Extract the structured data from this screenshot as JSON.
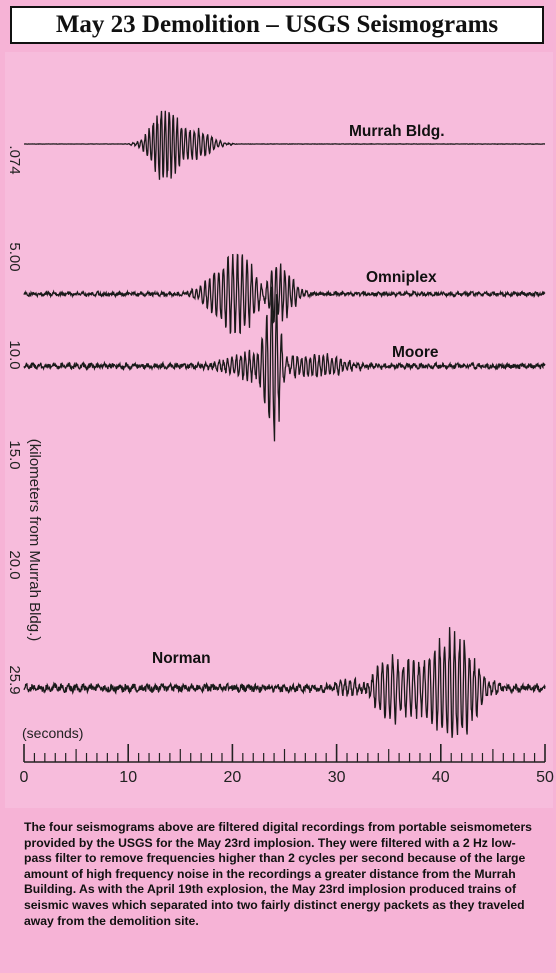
{
  "title": "May 23 Demolition – USGS Seismograms",
  "chart_data": {
    "type": "line",
    "xlabel": "(seconds)",
    "ylabel": "(kilometers  from Murrah Bldg.)",
    "xlim": [
      0,
      50
    ],
    "x_ticks": [
      "0",
      "10",
      "20",
      "30",
      "40",
      "50"
    ],
    "y_ticks": [
      ".074",
      "5.00",
      "10.0",
      "15.0",
      "20.0",
      "25.9"
    ],
    "series": [
      {
        "name": "Murrah Bldg.",
        "distance_km": 0.074,
        "arrival_s": 10.5,
        "end_s": 20
      },
      {
        "name": "Omniplex",
        "distance_km": 5.0,
        "arrival_s": 16.5,
        "end_s": 27
      },
      {
        "name": "Moore",
        "distance_km": 10.0,
        "arrival_s": 18,
        "end_s": 35
      },
      {
        "name": "Norman",
        "distance_km": 25.9,
        "arrival_s": 30,
        "end_s": 48
      }
    ]
  },
  "caption": "The four seismograms above are filtered digital recordings from portable seismometers provided by the USGS for the May 23rd implosion. They were filtered with a 2 Hz low-pass filter to remove frequencies higher than 2 cycles per second because of the large amount of high frequency noise in the recordings a greater distance from the Murrah Building. As with the April 19th explosion, the May 23rd implosion produced trains of seismic waves which separated into two fairly distinct energy packets as they traveled away from the demolition site."
}
